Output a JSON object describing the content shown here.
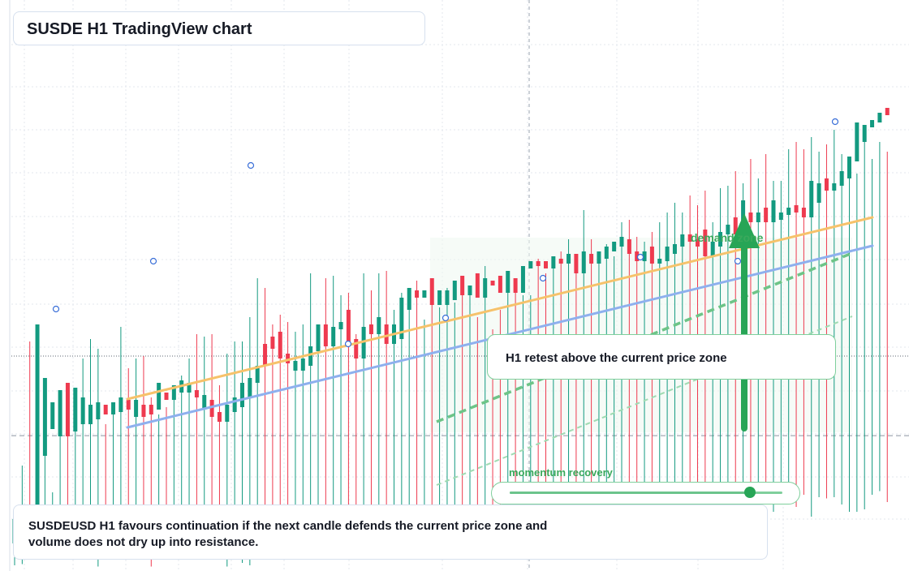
{
  "header": {
    "title": "SUSDE H1 TradingView chart"
  },
  "annotations": {
    "zone_label": "demand zone",
    "callout": "H1 retest above the current price zone",
    "summary": "SUSDEUSD H1 favours continuation if the next candle defends the current price zone and volume does not dry up into resistance.",
    "momentum_label": "momentum recovery"
  },
  "momentum": {
    "value": 0.88
  },
  "colors": {
    "up": "#139a80",
    "down": "#ee3a4f",
    "grid": "#e3e7ee",
    "ema_fast": "#f6c26b",
    "ema_slow": "#8eb0ee",
    "accent": "#27a556",
    "marker": "#3a6fd8"
  },
  "chart_data": {
    "type": "candlestick",
    "symbol": "SUSDEUSD",
    "timeframe": "H1",
    "ylim": [
      0,
      1000
    ],
    "price_line": 543,
    "high_line": 870,
    "candles": [
      [
        0,
        200,
        10,
        200,
        100,
        60,
        1
      ],
      [
        1,
        420,
        15,
        210,
        100,
        130,
        1
      ],
      [
        2,
        930,
        40,
        180,
        100,
        140,
        0
      ],
      [
        3,
        560,
        95,
        200,
        460,
        1000,
        1
      ],
      [
        4,
        490,
        165,
        460,
        620,
        780,
        1
      ],
      [
        5,
        310,
        225,
        620,
        570,
        680,
        1
      ],
      [
        6,
        610,
        225,
        570,
        540,
        730,
        1
      ],
      [
        7,
        760,
        200,
        540,
        560,
        760,
        0
      ],
      [
        8,
        710,
        130,
        560,
        610,
        740,
        1
      ],
      [
        9,
        860,
        60,
        610,
        590,
        700,
        1
      ],
      [
        10,
        940,
        35,
        590,
        610,
        670,
        1
      ],
      [
        11,
        900,
        5,
        610,
        640,
        680,
        1
      ],
      [
        12,
        590,
        175,
        640,
        630,
        670,
        0
      ],
      [
        13,
        650,
        115,
        630,
        640,
        680,
        1
      ],
      [
        14,
        990,
        125,
        640,
        660,
        700,
        1
      ],
      [
        15,
        820,
        115,
        660,
        650,
        690,
        0
      ],
      [
        16,
        860,
        45,
        650,
        620,
        690,
        1
      ],
      [
        17,
        870,
        35,
        620,
        630,
        670,
        0
      ],
      [
        18,
        700,
        5,
        630,
        650,
        670,
        0
      ],
      [
        19,
        630,
        120,
        650,
        700,
        760,
        1
      ],
      [
        20,
        660,
        90,
        700,
        690,
        720,
        0
      ],
      [
        21,
        730,
        130,
        690,
        720,
        750,
        1
      ],
      [
        22,
        790,
        75,
        720,
        730,
        770,
        1
      ],
      [
        23,
        860,
        80,
        730,
        720,
        760,
        1
      ],
      [
        24,
        960,
        75,
        720,
        700,
        730,
        0
      ],
      [
        25,
        950,
        145,
        700,
        650,
        710,
        1
      ],
      [
        26,
        960,
        125,
        650,
        620,
        690,
        0
      ],
      [
        27,
        750,
        75,
        620,
        600,
        640,
        0
      ],
      [
        28,
        880,
        5,
        600,
        640,
        670,
        1
      ],
      [
        29,
        930,
        35,
        640,
        660,
        700,
        1
      ],
      [
        30,
        930,
        20,
        660,
        700,
        760,
        1
      ],
      [
        31,
        1030,
        10,
        700,
        760,
        780,
        1
      ],
      [
        32,
        1190,
        80,
        760,
        830,
        830,
        1
      ],
      [
        33,
        1150,
        110,
        830,
        910,
        920,
        0
      ],
      [
        34,
        1000,
        70,
        910,
        900,
        950,
        0
      ],
      [
        35,
        1040,
        75,
        900,
        860,
        970,
        0
      ],
      [
        36,
        1010,
        140,
        860,
        840,
        880,
        0
      ],
      [
        37,
        970,
        145,
        840,
        810,
        850,
        1
      ],
      [
        38,
        1000,
        105,
        810,
        830,
        860,
        1
      ],
      [
        39,
        1210,
        85,
        830,
        890,
        910,
        1
      ],
      [
        40,
        990,
        90,
        890,
        1000,
        1000,
        1
      ],
      [
        41,
        1190,
        100,
        1000,
        910,
        1000,
        0
      ],
      [
        42,
        1200,
        165,
        910,
        980,
        990,
        1
      ],
      [
        43,
        1120,
        150,
        980,
        990,
        1010,
        1
      ],
      [
        44,
        1130,
        125,
        990,
        930,
        1060,
        0
      ],
      [
        45,
        960,
        105,
        930,
        860,
        940,
        0
      ],
      [
        46,
        1210,
        150,
        860,
        970,
        990,
        1
      ],
      [
        47,
        1140,
        105,
        970,
        960,
        1000,
        0
      ],
      [
        48,
        1210,
        80,
        960,
        1000,
        1030,
        1
      ],
      [
        49,
        1220,
        130,
        1000,
        920,
        1000,
        0
      ],
      [
        50,
        1060,
        145,
        920,
        940,
        1000,
        1
      ],
      [
        51,
        1130,
        125,
        940,
        1060,
        1110,
        1
      ],
      [
        52,
        1130,
        100,
        1060,
        1130,
        1150,
        1
      ],
      [
        53,
        1180,
        145,
        1130,
        1110,
        1140,
        0
      ],
      [
        54,
        1020,
        45,
        1110,
        1130,
        1140,
        1
      ],
      [
        55,
        1080,
        160,
        1130,
        1080,
        1190,
        0
      ],
      [
        56,
        1070,
        120,
        1080,
        1130,
        1140,
        1
      ],
      [
        57,
        1150,
        155,
        1080,
        1100,
        1140,
        1
      ],
      [
        58,
        1090,
        145,
        1100,
        1140,
        1180,
        1
      ],
      [
        59,
        1120,
        125,
        1140,
        1120,
        1200,
        0
      ],
      [
        60,
        1150,
        85,
        1120,
        1140,
        1160,
        1
      ],
      [
        61,
        1030,
        160,
        1140,
        1110,
        1210,
        0
      ],
      [
        62,
        1240,
        125,
        1110,
        1180,
        1190,
        1
      ],
      [
        63,
        980,
        130,
        1180,
        1160,
        1180,
        0
      ],
      [
        64,
        1060,
        135,
        1160,
        1130,
        1200,
        0
      ],
      [
        65,
        1180,
        160,
        1130,
        1180,
        1220,
        1
      ],
      [
        66,
        1160,
        190,
        1180,
        1130,
        1190,
        0
      ],
      [
        67,
        1120,
        125,
        1130,
        1230,
        1240,
        1
      ],
      [
        68,
        1120,
        205,
        1230,
        1250,
        1260,
        1
      ],
      [
        69,
        1270,
        160,
        1250,
        1240,
        1260,
        0
      ],
      [
        70,
        1210,
        135,
        1240,
        1230,
        1260,
        0
      ],
      [
        71,
        1250,
        140,
        1230,
        1260,
        1280,
        1
      ],
      [
        72,
        1300,
        180,
        1260,
        1250,
        1270,
        0
      ],
      [
        73,
        1350,
        125,
        1250,
        1260,
        1290,
        1
      ],
      [
        74,
        1280,
        195,
        1260,
        1210,
        1290,
        0
      ],
      [
        75,
        1470,
        160,
        1210,
        1280,
        1300,
        1
      ],
      [
        76,
        1350,
        185,
        1280,
        1250,
        1290,
        0
      ],
      [
        77,
        1290,
        140,
        1250,
        1270,
        1300,
        1
      ],
      [
        78,
        1330,
        190,
        1270,
        1300,
        1320,
        1
      ],
      [
        79,
        1280,
        120,
        1300,
        1320,
        1340,
        1
      ],
      [
        80,
        1420,
        215,
        1320,
        1340,
        1360,
        1
      ],
      [
        81,
        1430,
        180,
        1340,
        1290,
        1350,
        0
      ],
      [
        82,
        1360,
        170,
        1290,
        1260,
        1300,
        0
      ],
      [
        83,
        1340,
        200,
        1260,
        1280,
        1300,
        1
      ],
      [
        84,
        1380,
        210,
        1280,
        1250,
        1320,
        0
      ],
      [
        85,
        1420,
        230,
        1250,
        1260,
        1270,
        1
      ],
      [
        86,
        1460,
        225,
        1260,
        1290,
        1320,
        1
      ],
      [
        87,
        1500,
        240,
        1290,
        1320,
        1330,
        1
      ],
      [
        88,
        1460,
        260,
        1320,
        1350,
        1370,
        1
      ],
      [
        89,
        1530,
        220,
        1350,
        1340,
        1370,
        0
      ],
      [
        90,
        1490,
        230,
        1340,
        1320,
        1350,
        0
      ],
      [
        91,
        1550,
        250,
        1320,
        1280,
        1390,
        0
      ],
      [
        92,
        1420,
        265,
        1280,
        1320,
        1340,
        1
      ],
      [
        93,
        1560,
        200,
        1320,
        1370,
        1380,
        1
      ],
      [
        94,
        1570,
        270,
        1370,
        1390,
        1410,
        1
      ],
      [
        95,
        1630,
        280,
        1390,
        1370,
        1440,
        0
      ],
      [
        96,
        1580,
        225,
        1370,
        1430,
        1510,
        1
      ],
      [
        97,
        1680,
        235,
        1430,
        1420,
        1460,
        0
      ],
      [
        98,
        1600,
        275,
        1420,
        1440,
        1460,
        1
      ],
      [
        99,
        1700,
        300,
        1440,
        1420,
        1480,
        0
      ],
      [
        100,
        1590,
        230,
        1420,
        1430,
        1510,
        1
      ],
      [
        101,
        1590,
        305,
        1430,
        1450,
        1460,
        1
      ],
      [
        102,
        1720,
        290,
        1450,
        1470,
        1480,
        1
      ],
      [
        103,
        1750,
        250,
        1470,
        1460,
        1490,
        0
      ],
      [
        104,
        1720,
        300,
        1460,
        1440,
        1480,
        0
      ],
      [
        105,
        1770,
        210,
        1440,
        1500,
        1590,
        1
      ],
      [
        106,
        1710,
        290,
        1500,
        1560,
        1580,
        1
      ],
      [
        107,
        1740,
        285,
        1560,
        1550,
        1600,
        0
      ],
      [
        108,
        1800,
        290,
        1550,
        1570,
        1580,
        1
      ],
      [
        109,
        1700,
        260,
        1570,
        1600,
        1630,
        1
      ],
      [
        110,
        1680,
        230,
        1600,
        1670,
        1690,
        1
      ],
      [
        111,
        1620,
        230,
        1670,
        1750,
        1830,
        1
      ],
      [
        112,
        1780,
        240,
        1750,
        1810,
        1820,
        1
      ],
      [
        113,
        1680,
        300,
        1810,
        1830,
        1840,
        1
      ],
      [
        114,
        1750,
        315,
        1830,
        1870,
        1870,
        1
      ],
      [
        115,
        1710,
        270,
        1870,
        1860,
        1890,
        0
      ]
    ]
  }
}
